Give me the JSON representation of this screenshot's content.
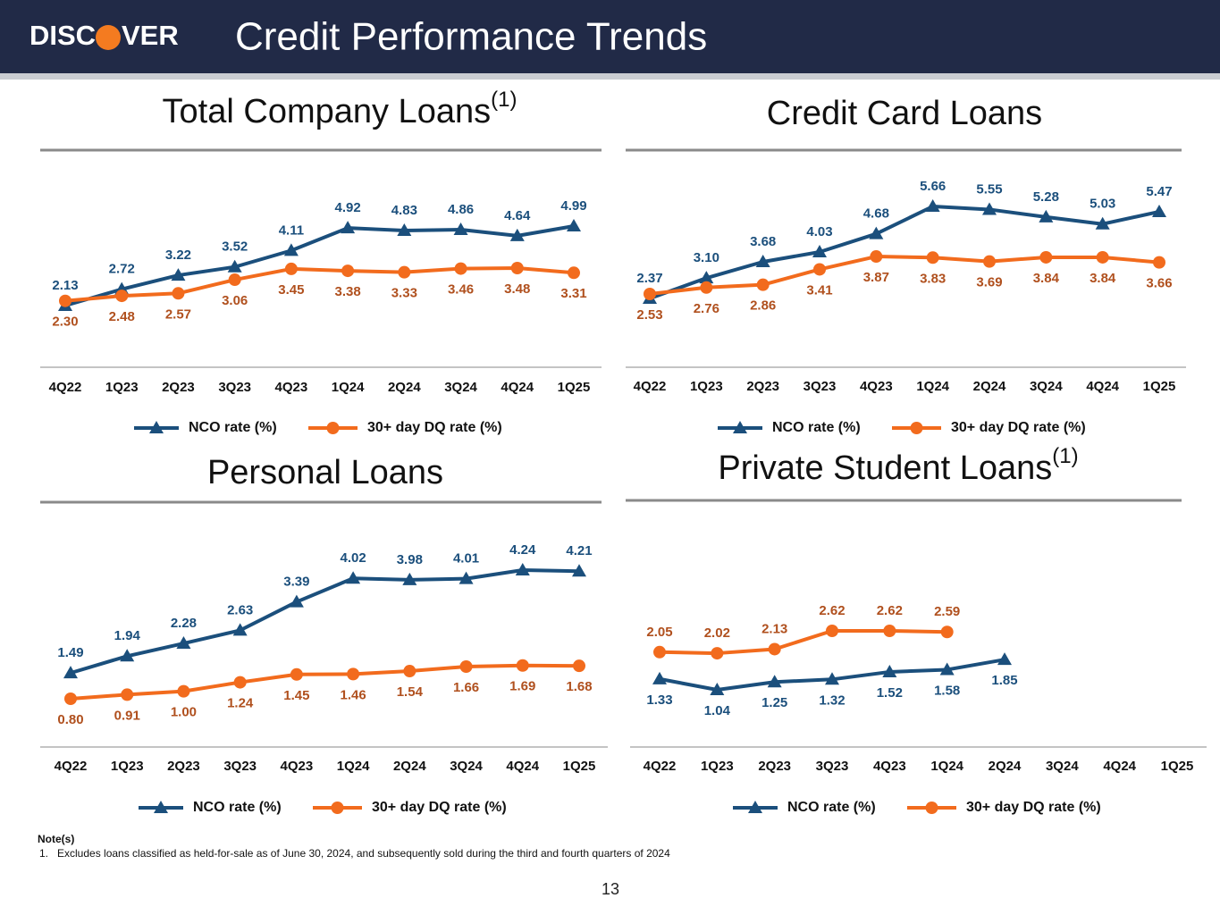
{
  "header": {
    "logo": [
      "DISC",
      "VER"
    ],
    "title": "Credit Performance Trends"
  },
  "chart_data": [
    {
      "type": "line",
      "title": "Total Company Loans",
      "title_superscript": "(1)",
      "categories": [
        "4Q22",
        "1Q23",
        "2Q23",
        "3Q23",
        "4Q23",
        "1Q24",
        "2Q24",
        "3Q24",
        "4Q24",
        "1Q25"
      ],
      "series": [
        {
          "name": "NCO rate (%)",
          "color": "#1b4f7c",
          "marker": "triangle",
          "values": [
            2.13,
            2.72,
            3.22,
            3.52,
            4.11,
            4.92,
            4.83,
            4.86,
            4.64,
            4.99
          ],
          "value_labels": [
            "2.13",
            "2.72",
            "3.22",
            "3.52",
            "4.11",
            "4.92",
            "4.83",
            "4.86",
            "4.64",
            "4.99"
          ]
        },
        {
          "name": "30+ day DQ rate (%)",
          "color": "#f26b1d",
          "marker": "circle",
          "values": [
            2.3,
            2.48,
            2.57,
            3.06,
            3.45,
            3.38,
            3.33,
            3.46,
            3.48,
            3.31
          ],
          "value_labels": [
            "2.30",
            "2.48",
            "2.57",
            "3.06",
            "3.45",
            "3.38",
            "3.33",
            "3.46",
            "3.48",
            "3.31"
          ]
        }
      ]
    },
    {
      "type": "line",
      "title": "Credit Card Loans",
      "categories": [
        "4Q22",
        "1Q23",
        "2Q23",
        "3Q23",
        "4Q23",
        "1Q24",
        "2Q24",
        "3Q24",
        "4Q24",
        "1Q25"
      ],
      "series": [
        {
          "name": "NCO rate (%)",
          "color": "#1b4f7c",
          "marker": "triangle",
          "values": [
            2.37,
            3.1,
            3.68,
            4.03,
            4.68,
            5.66,
            5.55,
            5.28,
            5.03,
            5.47
          ],
          "value_labels": [
            "2.37",
            "3.10",
            "3.68",
            "4.03",
            "4.68",
            "5.66",
            "5.55",
            "5.28",
            "5.03",
            "5.47"
          ]
        },
        {
          "name": "30+ day DQ rate (%)",
          "color": "#f26b1d",
          "marker": "circle",
          "values": [
            2.53,
            2.76,
            2.86,
            3.41,
            3.87,
            3.83,
            3.69,
            3.84,
            3.84,
            3.66
          ],
          "value_labels": [
            "2.53",
            "2.76",
            "2.86",
            "3.41",
            "3.87",
            "3.83",
            "3.69",
            "3.84",
            "3.84",
            "3.66"
          ]
        }
      ]
    },
    {
      "type": "line",
      "title": "Personal Loans",
      "categories": [
        "4Q22",
        "1Q23",
        "2Q23",
        "3Q23",
        "4Q23",
        "1Q24",
        "2Q24",
        "3Q24",
        "4Q24",
        "1Q25"
      ],
      "series": [
        {
          "name": "NCO rate (%)",
          "color": "#1b4f7c",
          "marker": "triangle",
          "values": [
            1.49,
            1.94,
            2.28,
            2.63,
            3.39,
            4.02,
            3.98,
            4.01,
            4.24,
            4.21
          ],
          "value_labels": [
            "1.49",
            "1.94",
            "2.28",
            "2.63",
            "3.39",
            "4.02",
            "3.98",
            "4.01",
            "4.24",
            "4.21"
          ]
        },
        {
          "name": "30+ day DQ rate (%)",
          "color": "#f26b1d",
          "marker": "circle",
          "values": [
            0.8,
            0.91,
            1.0,
            1.24,
            1.45,
            1.46,
            1.54,
            1.66,
            1.69,
            1.68
          ],
          "value_labels": [
            "0.80",
            "0.91",
            "1.00",
            "1.24",
            "1.45",
            "1.46",
            "1.54",
            "1.66",
            "1.69",
            "1.68"
          ]
        }
      ]
    },
    {
      "type": "line",
      "title": "Private Student Loans",
      "title_superscript": "(1)",
      "categories": [
        "4Q22",
        "1Q23",
        "2Q23",
        "3Q23",
        "4Q23",
        "1Q24",
        "2Q24",
        "3Q24",
        "4Q24",
        "1Q25"
      ],
      "series": [
        {
          "name": "NCO rate (%)",
          "color": "#1b4f7c",
          "marker": "triangle",
          "values": [
            1.33,
            1.04,
            1.25,
            1.32,
            1.52,
            1.58,
            1.85,
            null,
            null,
            null
          ],
          "value_labels": [
            "1.33",
            "1.04",
            "1.25",
            "1.32",
            "1.52",
            "1.58",
            "1.85",
            null,
            null,
            null
          ]
        },
        {
          "name": "30+ day DQ rate (%)",
          "color": "#f26b1d",
          "marker": "circle",
          "values": [
            2.05,
            2.02,
            2.13,
            2.62,
            2.62,
            2.59,
            null,
            null,
            null,
            null
          ],
          "value_labels": [
            "2.05",
            "2.02",
            "2.13",
            "2.62",
            "2.62",
            "2.59",
            null,
            null,
            null,
            null
          ]
        }
      ]
    }
  ],
  "notes": {
    "heading": "Note(s)",
    "items": [
      {
        "number": "1.",
        "text": "Excludes loans classified as held-for-sale as of June 30, 2024, and subsequently sold during the third and fourth quarters of 2024"
      }
    ]
  },
  "page_number": "13"
}
